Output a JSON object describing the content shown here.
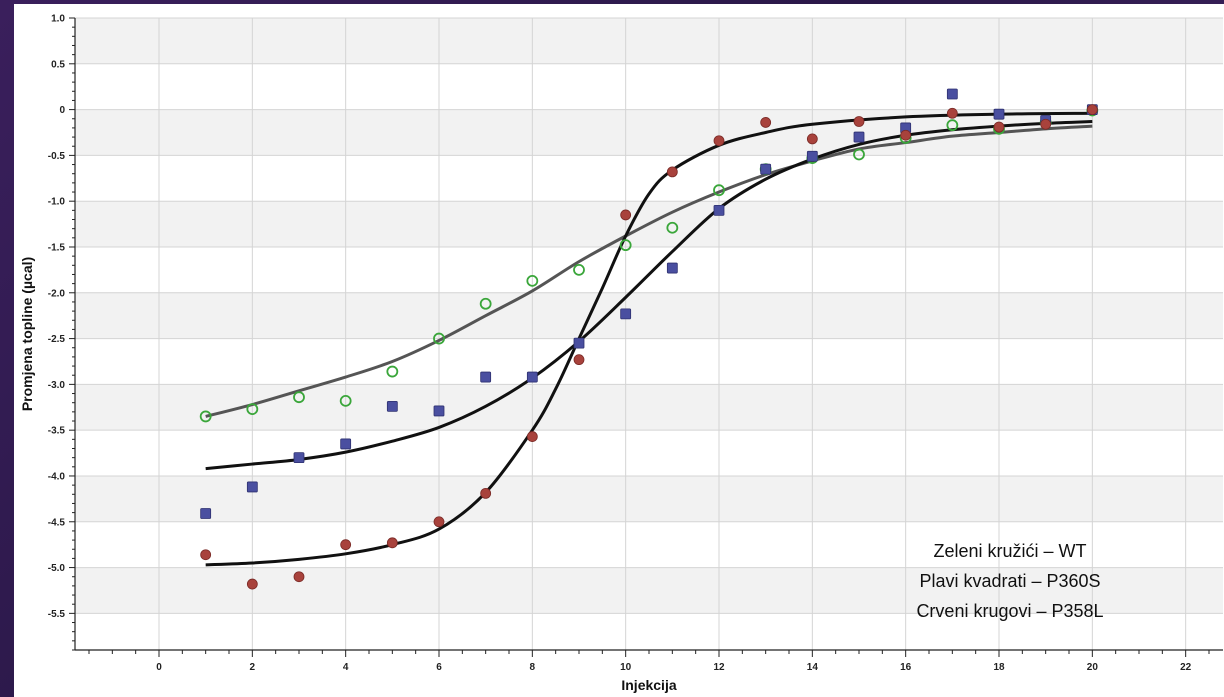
{
  "chart_data": {
    "type": "scatter",
    "title": "",
    "xlabel": "Injekcija",
    "ylabel": "Promjena topline (µcal)",
    "xlim": [
      -1.8,
      22.8
    ],
    "ylim": [
      -5.9,
      1.0
    ],
    "xticks": [
      0,
      2,
      4,
      6,
      8,
      10,
      12,
      14,
      16,
      18,
      20,
      22
    ],
    "xtick_labels": [
      "0",
      "2",
      "4",
      "6",
      "8",
      "10",
      "12",
      "14",
      "16",
      "18",
      "20",
      "22"
    ],
    "yticks": [
      1.0,
      0.5,
      0,
      -0.5,
      -1.0,
      -1.5,
      -2.0,
      -2.5,
      -3.0,
      -3.5,
      -4.0,
      -4.5,
      -5.0,
      -5.5
    ],
    "ytick_labels": [
      "1.0",
      "0.5",
      "0",
      "-0.5",
      "-1.0",
      "-1.5",
      "-2.0",
      "-2.5",
      "-3.0",
      "-3.5",
      "-4.0",
      "-4.5",
      "-5.0",
      "-5.5"
    ],
    "grid": true,
    "series": [
      {
        "marker": "open-circle",
        "color": "#3aa63a",
        "fit_color": "#555555",
        "x": [
          1,
          2,
          3,
          4,
          5,
          6,
          7,
          8,
          9,
          10,
          11,
          12,
          13,
          14,
          15,
          16,
          17,
          18,
          19,
          20
        ],
        "y": [
          -3.35,
          -3.27,
          -3.14,
          -3.18,
          -2.86,
          -2.5,
          -2.12,
          -1.87,
          -1.75,
          -1.48,
          -1.29,
          -0.88,
          -0.65,
          -0.53,
          -0.49,
          -0.31,
          -0.17,
          -0.21,
          -0.14,
          -0.01
        ],
        "fit_x": [
          1,
          2,
          3,
          4,
          5,
          6,
          7,
          8,
          9,
          10,
          11,
          12,
          13,
          14,
          15,
          16,
          17,
          18,
          19,
          20
        ],
        "fit_y": [
          -3.35,
          -3.22,
          -3.07,
          -2.92,
          -2.75,
          -2.52,
          -2.25,
          -1.98,
          -1.66,
          -1.38,
          -1.12,
          -0.9,
          -0.71,
          -0.56,
          -0.43,
          -0.36,
          -0.29,
          -0.25,
          -0.21,
          -0.18
        ]
      },
      {
        "marker": "square",
        "color": "#4a4fa0",
        "fit_color": "#111111",
        "x": [
          1,
          2,
          3,
          4,
          5,
          6,
          7,
          8,
          9,
          10,
          11,
          12,
          13,
          14,
          15,
          16,
          17,
          18,
          19,
          20
        ],
        "y": [
          -4.41,
          -4.12,
          -3.8,
          -3.65,
          -3.24,
          -3.29,
          -2.92,
          -2.92,
          -2.55,
          -2.23,
          -1.73,
          -1.1,
          -0.65,
          -0.51,
          -0.3,
          -0.2,
          0.17,
          -0.05,
          -0.12,
          0.0
        ],
        "fit_x": [
          1,
          2,
          3,
          4,
          5,
          6,
          7,
          8,
          9,
          10,
          11,
          12,
          13,
          14,
          15,
          16,
          17,
          18,
          19,
          20
        ],
        "fit_y": [
          -3.92,
          -3.87,
          -3.82,
          -3.74,
          -3.62,
          -3.47,
          -3.24,
          -2.93,
          -2.53,
          -2.05,
          -1.55,
          -1.08,
          -0.76,
          -0.54,
          -0.38,
          -0.28,
          -0.22,
          -0.18,
          -0.15,
          -0.13
        ]
      },
      {
        "marker": "filled-circle",
        "color": "#a8423c",
        "fit_color": "#111111",
        "x": [
          1,
          2,
          3,
          4,
          5,
          6,
          7,
          8,
          9,
          10,
          11,
          12,
          13,
          14,
          15,
          16,
          17,
          18,
          19,
          20
        ],
        "y": [
          -4.86,
          -5.18,
          -5.1,
          -4.75,
          -4.73,
          -4.5,
          -4.19,
          -3.57,
          -2.73,
          -1.15,
          -0.68,
          -0.34,
          -0.14,
          -0.32,
          -0.13,
          -0.28,
          -0.04,
          -0.19,
          -0.16,
          0.0
        ],
        "fit_x": [
          1,
          2,
          3,
          4,
          5,
          6,
          7,
          8,
          8.5,
          9,
          9.5,
          10,
          10.5,
          11,
          12,
          13,
          14,
          16,
          18,
          20
        ],
        "fit_y": [
          -4.97,
          -4.95,
          -4.91,
          -4.85,
          -4.75,
          -4.58,
          -4.18,
          -3.5,
          -3.05,
          -2.5,
          -1.95,
          -1.38,
          -0.92,
          -0.66,
          -0.39,
          -0.25,
          -0.16,
          -0.08,
          -0.05,
          -0.04
        ]
      }
    ],
    "legend": {
      "placement": "bottom-right",
      "lines": [
        "Zeleni kružići – WT",
        "Plavi kvadrati – P360S",
        "Crveni krugovi – P358L"
      ]
    }
  }
}
